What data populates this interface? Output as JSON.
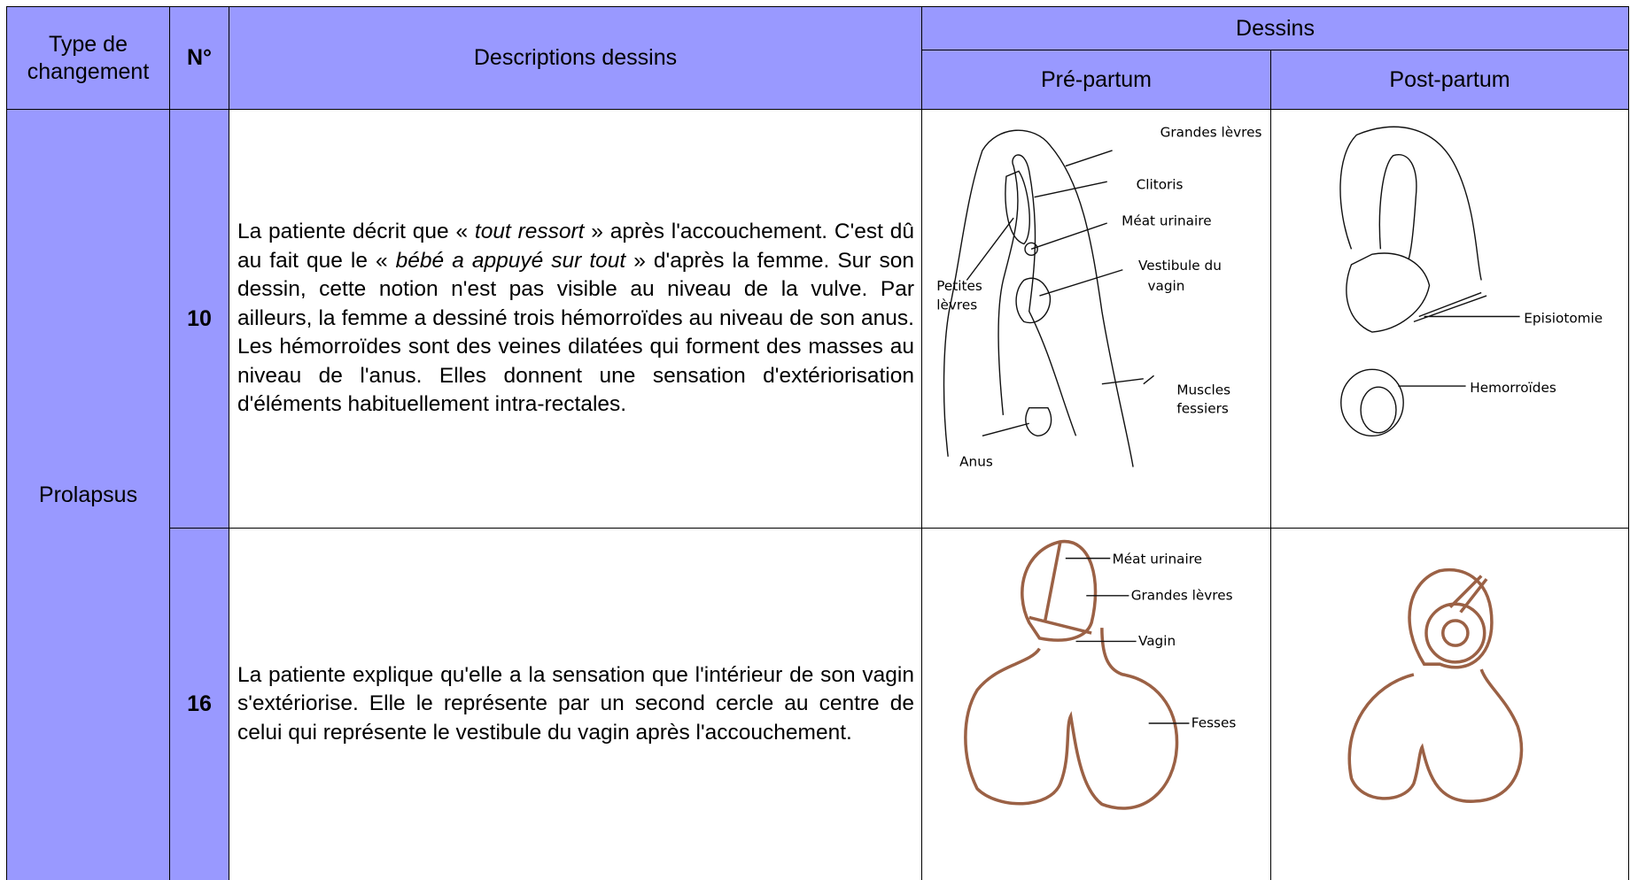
{
  "header": {
    "type": "Type de changement",
    "number": "N°",
    "description": "Descriptions dessins",
    "drawings": "Dessins",
    "pre": "Pré-partum",
    "post": "Post-partum"
  },
  "group": "Prolapsus",
  "rows": [
    {
      "number": "10",
      "description": [
        "La patiente décrit que « ",
        {
          "text": "tout ressort",
          "italic": true
        },
        " » après l'accouchement. C'est dû au fait que le « ",
        {
          "text": "bébé a appuyé sur tout",
          "italic": true
        },
        " » d'après la femme. Sur son dessin, cette notion n'est pas visible au niveau de la vulve. Par ailleurs, la femme a dessiné trois hémorroïdes au niveau de son anus. Les hémorroïdes sont des veines dilatées qui forment des masses au niveau de l'anus. Elles donnent une sensation d'extériorisation d'éléments habituellement intra-rectales."
      ],
      "pre_labels": [
        [
          "Grandes lèvres"
        ],
        [
          "Clitoris"
        ],
        [
          "Méat urinaire"
        ],
        [
          "Vestibule du",
          "vagin"
        ],
        [
          "Petites",
          "lèvres"
        ],
        [
          "Muscles",
          "fessiers"
        ],
        [
          "Anus"
        ]
      ],
      "post_labels": [
        [
          "Episiotomie"
        ],
        [
          "Hemorroïdes"
        ]
      ]
    },
    {
      "number": "16",
      "description": [
        "La patiente explique qu'elle a la sensation que l'intérieur de son vagin s'extériorise. Elle le représente par un second cercle au centre de celui qui représente le vestibule du vagin après l'accouchement."
      ],
      "pre_labels": [
        [
          "Méat urinaire"
        ],
        [
          "Grandes lèvres"
        ],
        [
          "Vagin"
        ],
        [
          "Fesses"
        ]
      ],
      "post_labels": []
    }
  ]
}
